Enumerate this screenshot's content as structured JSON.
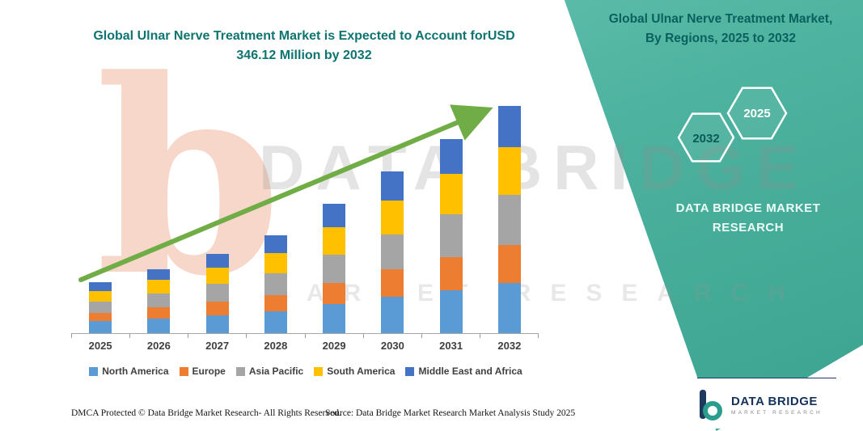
{
  "header": {
    "title": "Global Ulnar Nerve Treatment Market is Expected to Account forUSD 346.12 Million by 2032"
  },
  "side_panel": {
    "title": "Global Ulnar Nerve Treatment Market, By Regions, 2025 to 2032",
    "badge_back": "2032",
    "badge_front": "2025",
    "brand_text": "DATA BRIDGE MARKET RESEARCH"
  },
  "watermark": {
    "logo_letter": "b",
    "line1": "DATA BRIDGE",
    "line2": "MARKET RESEARCH"
  },
  "chart_data": {
    "type": "bar",
    "stacked": true,
    "title": "Global Ulnar Nerve Treatment Market is Expected to Account forUSD 346.12 Million by 2032",
    "categories": [
      "2025",
      "2026",
      "2027",
      "2028",
      "2029",
      "2030",
      "2031",
      "2032"
    ],
    "series": [
      {
        "name": "North America",
        "color": "#5B9BD5",
        "values": [
          18,
          22,
          27,
          33,
          44,
          55,
          66,
          76
        ]
      },
      {
        "name": "Europe",
        "color": "#ED7D31",
        "values": [
          13,
          17,
          21,
          25,
          33,
          42,
          50,
          59
        ]
      },
      {
        "name": "Asia Pacific",
        "color": "#A5A5A5",
        "values": [
          17,
          22,
          27,
          33,
          43,
          54,
          65,
          76
        ]
      },
      {
        "name": "South America",
        "color": "#FFC000",
        "values": [
          16,
          20,
          25,
          31,
          41,
          51,
          62,
          73
        ]
      },
      {
        "name": "Middle East and Africa",
        "color": "#4472C4",
        "values": [
          14,
          17,
          21,
          27,
          36,
          44,
          53,
          62
        ]
      }
    ],
    "totals": [
      78,
      98,
      121,
      149,
      197,
      246,
      296,
      346
    ],
    "final_value_label": "USD 346.12 Million by 2032",
    "xlabel": "",
    "ylabel": "",
    "ylim": [
      0,
      360
    ],
    "grid": false,
    "legend_position": "bottom",
    "trend_arrow": {
      "present": true,
      "color": "#70AD47"
    }
  },
  "footer": {
    "dmca": "DMCA Protected © Data Bridge Market Research-  All Rights Reserved.",
    "source": "Source: Data Bridge Market Research  Market Analysis Study 2025"
  },
  "logo": {
    "brand": "DATA BRIDGE",
    "tagline": "MARKET RESEARCH"
  },
  "colors": {
    "accent_teal": "#4EB3A0",
    "deep_teal": "#09615D",
    "title_teal": "#0E7470",
    "navy": "#16325C",
    "arrow_green": "#70AD47"
  }
}
